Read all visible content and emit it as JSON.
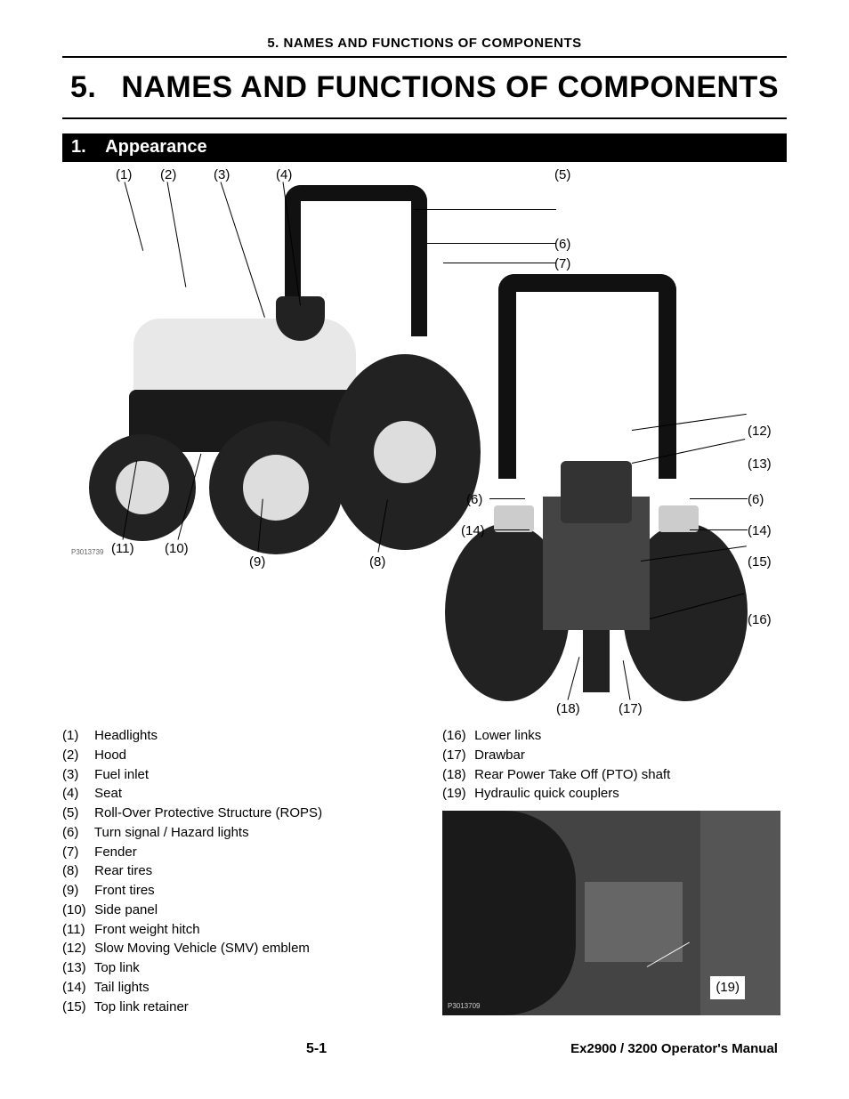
{
  "runningHead": "5. NAMES AND FUNCTIONS OF COMPONENTS",
  "chapterNumber": "5.",
  "chapterTitle": "NAMES AND FUNCTIONS OF COMPONENTS",
  "sectionNumber": "1.",
  "sectionTitle": "Appearance",
  "frontCallouts": {
    "c1": "(1)",
    "c2": "(2)",
    "c3": "(3)",
    "c4": "(4)",
    "c5": "(5)",
    "c6": "(6)",
    "c7": "(7)",
    "c8": "(8)",
    "c9": "(9)",
    "c10": "(10)",
    "c11": "(11)"
  },
  "rearCallouts": {
    "c12": "(12)",
    "c13": "(13)",
    "c6a": "(6)",
    "c6b": "(6)",
    "c14a": "(14)",
    "c14b": "(14)",
    "c15": "(15)",
    "c16": "(16)",
    "c17": "(17)",
    "c18": "(18)"
  },
  "detailCallout": "(19)",
  "photoCreditFront": "P3013739",
  "photoCreditDetail": "P3013709",
  "legendLeft": [
    {
      "n": "(1)",
      "t": "Headlights"
    },
    {
      "n": "(2)",
      "t": "Hood"
    },
    {
      "n": "(3)",
      "t": "Fuel inlet"
    },
    {
      "n": "(4)",
      "t": "Seat"
    },
    {
      "n": "(5)",
      "t": "Roll-Over Protective Structure (ROPS)"
    },
    {
      "n": "(6)",
      "t": "Turn signal / Hazard lights"
    },
    {
      "n": "(7)",
      "t": "Fender"
    },
    {
      "n": "(8)",
      "t": "Rear tires"
    },
    {
      "n": "(9)",
      "t": "Front tires"
    },
    {
      "n": "(10)",
      "t": "Side panel"
    },
    {
      "n": "(11)",
      "t": "Front weight hitch"
    },
    {
      "n": "(12)",
      "t": "Slow Moving Vehicle (SMV) emblem"
    },
    {
      "n": "(13)",
      "t": "Top link"
    },
    {
      "n": "(14)",
      "t": "Tail lights"
    },
    {
      "n": "(15)",
      "t": "Top link retainer"
    }
  ],
  "legendRight": [
    {
      "n": "(16)",
      "t": "Lower links"
    },
    {
      "n": "(17)",
      "t": "Drawbar"
    },
    {
      "n": "(18)",
      "t": "Rear Power Take Off (PTO) shaft"
    },
    {
      "n": "(19)",
      "t": "Hydraulic quick couplers"
    }
  ],
  "pageNumber": "5-1",
  "manualTitle": "Ex2900 / 3200 Operator's Manual",
  "colors": {
    "sectionBarBg": "#000000",
    "sectionBarText": "#ffffff",
    "pageBg": "#ffffff",
    "text": "#000000"
  }
}
